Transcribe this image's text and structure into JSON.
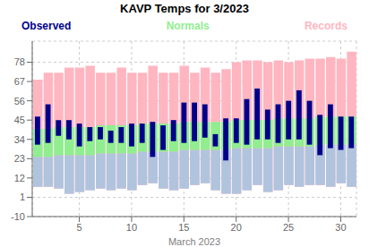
{
  "chart_data": {
    "type": "bar",
    "title": "KAVP Temps for 3/2023",
    "xlabel": "March 2023",
    "x": [
      1,
      2,
      3,
      4,
      5,
      6,
      7,
      8,
      9,
      10,
      11,
      12,
      13,
      14,
      15,
      16,
      17,
      18,
      19,
      20,
      21,
      22,
      23,
      24,
      25,
      26,
      27,
      28,
      29,
      30,
      31
    ],
    "xlim": [
      0.5,
      31.5
    ],
    "xticks": [
      5,
      10,
      15,
      20,
      25,
      30
    ],
    "ylim": [
      -10,
      90
    ],
    "yticks": [
      -10,
      1,
      12,
      23,
      34,
      45,
      56,
      67,
      78
    ],
    "grid": true,
    "legend": "top",
    "series": [
      {
        "name": "Records",
        "color": "#FFB6C1",
        "low": [
          7,
          7,
          6,
          3,
          4,
          5,
          6,
          5,
          6,
          5,
          8,
          9,
          6,
          5,
          6,
          8,
          9,
          5,
          3,
          3,
          5,
          8,
          4,
          5,
          8,
          7,
          8,
          8,
          7,
          9,
          7
        ],
        "high": [
          68,
          72,
          72,
          75,
          75,
          76,
          72,
          72,
          75,
          72,
          72,
          76,
          72,
          72,
          76,
          72,
          75,
          72,
          74,
          78,
          79,
          79,
          78,
          79,
          78,
          79,
          80,
          80,
          81,
          80,
          84
        ]
      },
      {
        "color": "#B0C4DE",
        "low": [
          7,
          7,
          6,
          3,
          4,
          5,
          6,
          5,
          6,
          5,
          8,
          9,
          6,
          5,
          6,
          8,
          9,
          5,
          3,
          3,
          5,
          8,
          4,
          5,
          8,
          7,
          8,
          8,
          7,
          9,
          7
        ],
        "high": [
          24,
          24,
          25,
          25,
          25,
          25,
          26,
          26,
          26,
          26,
          27,
          27,
          27,
          27,
          28,
          28,
          28,
          28,
          28,
          29,
          29,
          29,
          29,
          30,
          30,
          30,
          30,
          31,
          31,
          31,
          31
        ]
      },
      {
        "name": "Normals",
        "color": "#90EE90",
        "low": [
          24,
          24,
          25,
          25,
          25,
          25,
          26,
          26,
          26,
          26,
          27,
          27,
          27,
          27,
          28,
          28,
          28,
          28,
          28,
          29,
          29,
          29,
          29,
          30,
          30,
          30,
          30,
          31,
          31,
          31,
          31
        ],
        "high": [
          40,
          40,
          41,
          41,
          41,
          41,
          42,
          42,
          42,
          42,
          43,
          43,
          43,
          43,
          44,
          44,
          44,
          44,
          44,
          45,
          45,
          45,
          45,
          46,
          46,
          46,
          46,
          47,
          47,
          47,
          47
        ]
      },
      {
        "name": "Observed",
        "color": "#00008B",
        "low": [
          31,
          32,
          36,
          34,
          30,
          33,
          34,
          32,
          32,
          30,
          32,
          24,
          28,
          33,
          32,
          33,
          35,
          30,
          22,
          32,
          31,
          34,
          34,
          32,
          34,
          34,
          31,
          25,
          29,
          28,
          29
        ],
        "high": [
          47,
          54,
          45,
          45,
          43,
          41,
          41,
          39,
          41,
          43,
          43,
          44,
          42,
          45,
          55,
          55,
          54,
          37,
          46,
          46,
          57,
          63,
          51,
          54,
          56,
          62,
          56,
          48,
          54,
          47,
          47
        ]
      }
    ]
  }
}
